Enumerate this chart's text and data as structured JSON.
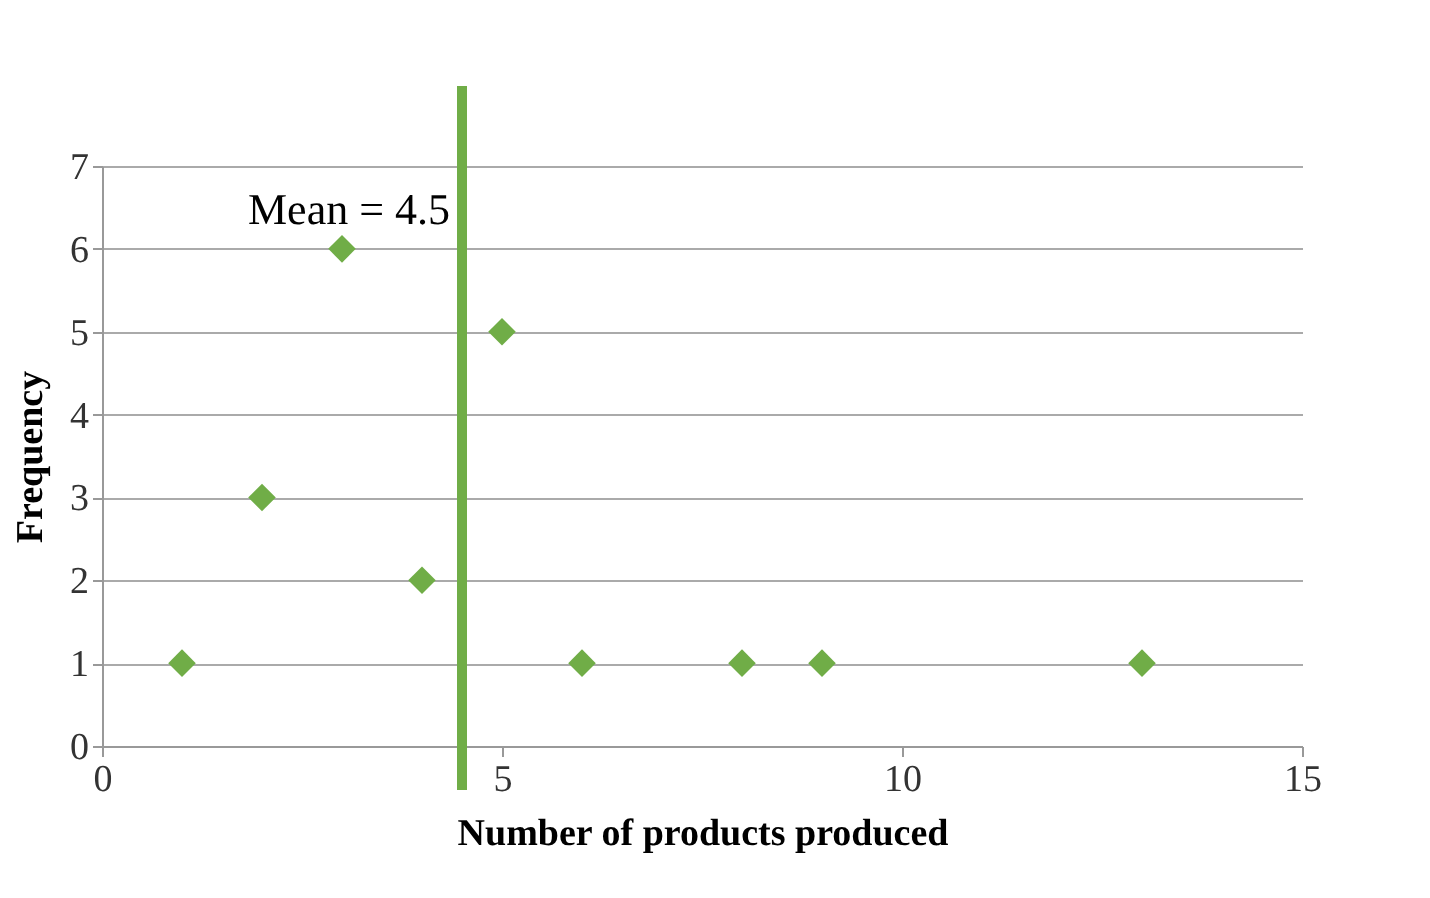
{
  "chart_data": {
    "type": "scatter",
    "xlabel": "Number of products produced",
    "ylabel": "Frequency",
    "x": [
      1,
      2,
      3,
      4,
      5,
      6,
      8,
      9,
      13
    ],
    "series": [
      {
        "color": "#70ad47",
        "values": [
          1,
          3,
          6,
          2,
          5,
          1,
          1,
          1,
          1
        ]
      }
    ],
    "xlim": [
      0,
      15
    ],
    "xticks": [
      0,
      5,
      10,
      15
    ],
    "ylim": [
      0,
      7
    ],
    "yticks": [
      0,
      1,
      2,
      3,
      4,
      5,
      6,
      7
    ],
    "grid": "y",
    "marker": "diamond",
    "ref_lines": [
      {
        "axis": "x",
        "value": 4.5,
        "label": "Mean = 4.5",
        "color": "#70ad47"
      }
    ]
  }
}
